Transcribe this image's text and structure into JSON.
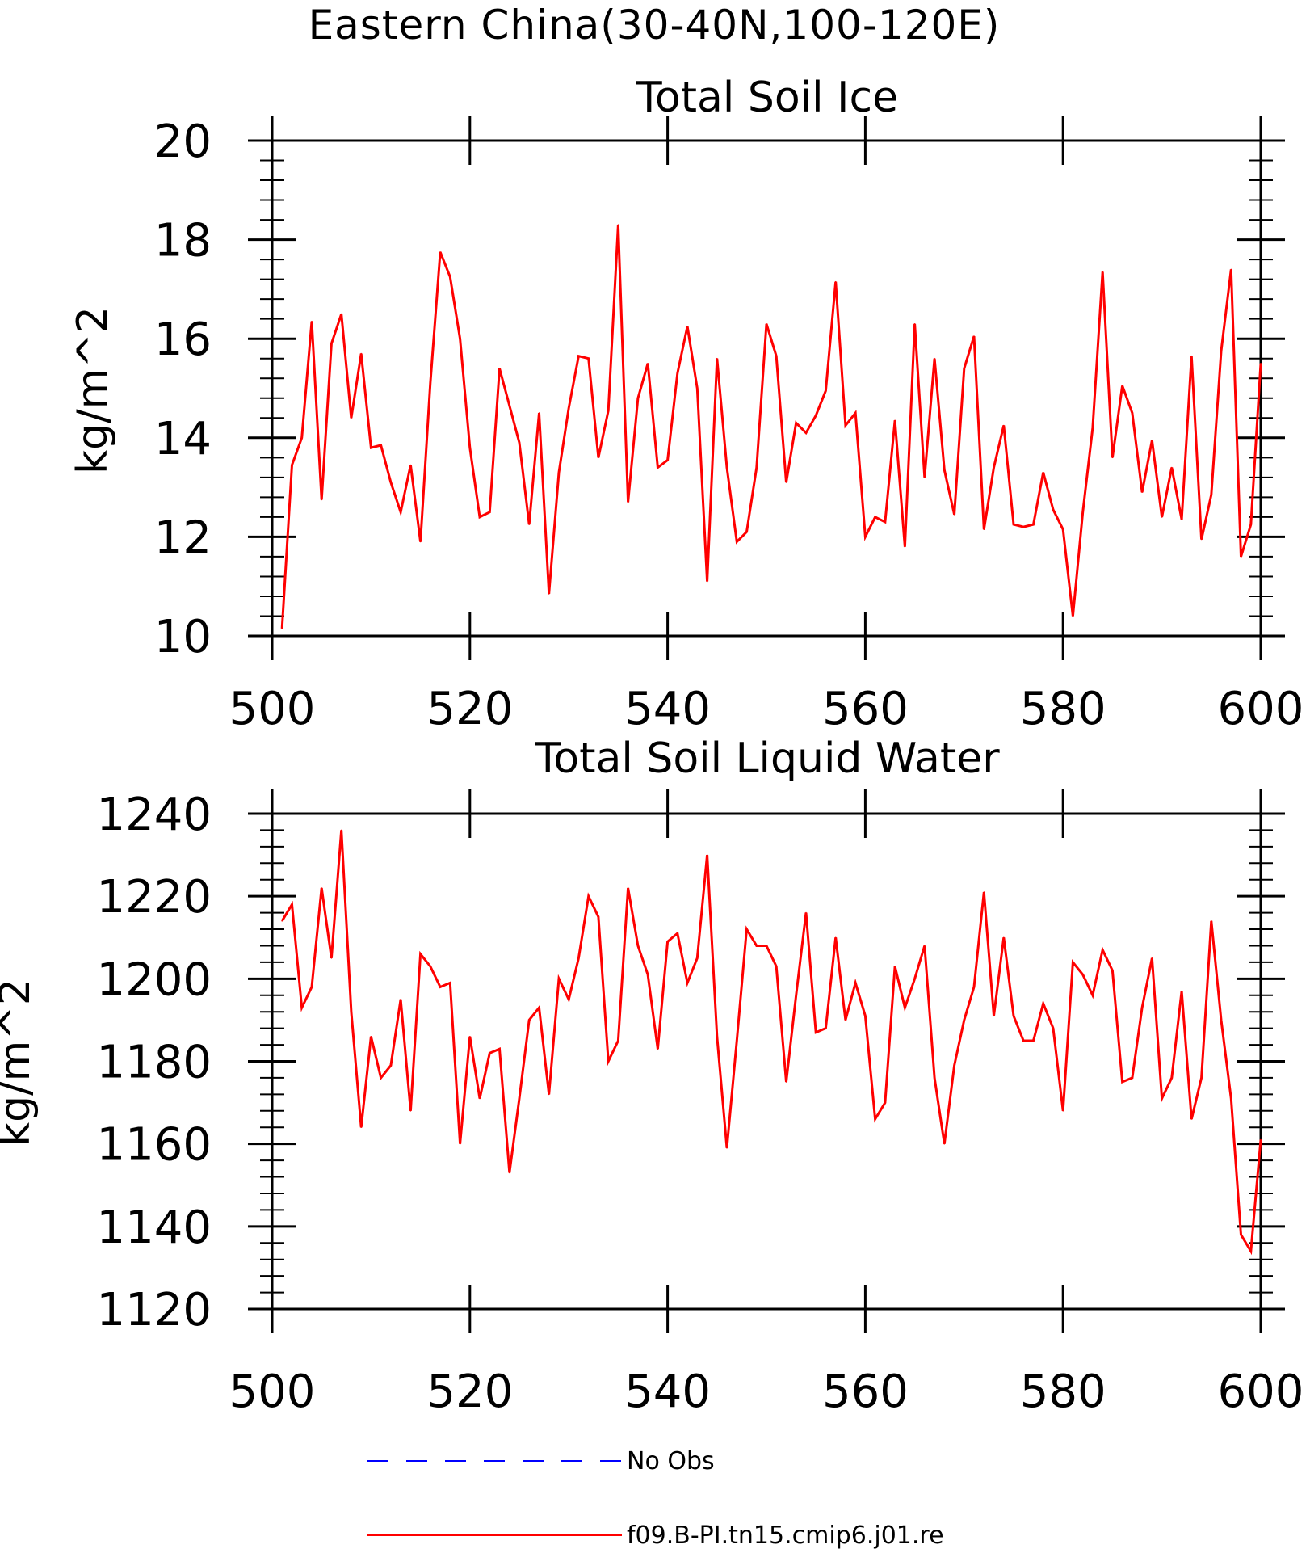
{
  "main_title": "Eastern China(30-40N,100-120E)",
  "legend": [
    {
      "label": "No Obs",
      "color": "#0000ff",
      "style": "dashed"
    },
    {
      "label": "f09.B-PI.tn15.cmip6.j01.re",
      "color": "#ff0000",
      "style": "solid"
    }
  ],
  "chart_data": [
    {
      "type": "line",
      "title": "Total Soil Ice",
      "xlabel": "",
      "ylabel": "kg/m^2",
      "xlim": [
        500,
        600
      ],
      "ylim": [
        10,
        20
      ],
      "xticks": [
        500,
        520,
        540,
        560,
        580,
        600
      ],
      "yticks": [
        10,
        12,
        14,
        16,
        18,
        20
      ],
      "grid": false,
      "x": [
        501,
        502,
        503,
        504,
        505,
        506,
        507,
        508,
        509,
        510,
        511,
        512,
        513,
        514,
        515,
        516,
        517,
        518,
        519,
        520,
        521,
        522,
        523,
        524,
        525,
        526,
        527,
        528,
        529,
        530,
        531,
        532,
        533,
        534,
        535,
        536,
        537,
        538,
        539,
        540,
        541,
        542,
        543,
        544,
        545,
        546,
        547,
        548,
        549,
        550,
        551,
        552,
        553,
        554,
        555,
        556,
        557,
        558,
        559,
        560,
        561,
        562,
        563,
        564,
        565,
        566,
        567,
        568,
        569,
        570,
        571,
        572,
        573,
        574,
        575,
        576,
        577,
        578,
        579,
        580,
        581,
        582,
        583,
        584,
        585,
        586,
        587,
        588,
        589,
        590,
        591,
        592,
        593,
        594,
        595,
        596,
        597,
        598,
        599,
        600
      ],
      "series": [
        {
          "name": "f09.B-PI.tn15.cmip6.j01.re",
          "color": "#ff0000",
          "values": [
            10.15,
            13.45,
            14.0,
            16.35,
            12.75,
            15.9,
            16.5,
            14.4,
            15.7,
            13.8,
            13.85,
            13.1,
            12.5,
            13.45,
            11.9,
            15.1,
            17.75,
            17.25,
            16.0,
            13.8,
            12.4,
            12.5,
            15.4,
            14.65,
            13.9,
            12.25,
            14.5,
            10.85,
            13.3,
            14.6,
            15.65,
            15.6,
            13.6,
            14.55,
            18.3,
            12.7,
            14.8,
            15.5,
            13.4,
            13.55,
            15.3,
            16.25,
            15.0,
            11.1,
            15.6,
            13.4,
            11.9,
            12.1,
            13.4,
            16.3,
            15.65,
            13.1,
            14.3,
            14.1,
            14.45,
            14.95,
            17.15,
            14.25,
            14.5,
            12.0,
            12.4,
            12.3,
            14.35,
            11.8,
            16.3,
            13.2,
            15.6,
            13.35,
            12.45,
            15.4,
            16.05,
            12.15,
            13.4,
            14.25,
            12.25,
            12.2,
            12.25,
            13.3,
            12.55,
            12.15,
            10.4,
            12.5,
            14.2,
            17.35,
            13.6,
            15.05,
            14.5,
            12.9,
            13.95,
            12.4,
            13.4,
            12.35,
            15.65,
            11.95,
            12.85,
            15.75,
            17.4,
            11.6,
            12.25,
            15.5
          ]
        }
      ]
    },
    {
      "type": "line",
      "title": "Total Soil Liquid Water",
      "xlabel": "",
      "ylabel": "kg/m^2",
      "xlim": [
        500,
        600
      ],
      "ylim": [
        1120,
        1240
      ],
      "xticks": [
        500,
        520,
        540,
        560,
        580,
        600
      ],
      "yticks": [
        1120,
        1140,
        1160,
        1180,
        1200,
        1220,
        1240
      ],
      "grid": false,
      "x": [
        501,
        502,
        503,
        504,
        505,
        506,
        507,
        508,
        509,
        510,
        511,
        512,
        513,
        514,
        515,
        516,
        517,
        518,
        519,
        520,
        521,
        522,
        523,
        524,
        525,
        526,
        527,
        528,
        529,
        530,
        531,
        532,
        533,
        534,
        535,
        536,
        537,
        538,
        539,
        540,
        541,
        542,
        543,
        544,
        545,
        546,
        547,
        548,
        549,
        550,
        551,
        552,
        553,
        554,
        555,
        556,
        557,
        558,
        559,
        560,
        561,
        562,
        563,
        564,
        565,
        566,
        567,
        568,
        569,
        570,
        571,
        572,
        573,
        574,
        575,
        576,
        577,
        578,
        579,
        580,
        581,
        582,
        583,
        584,
        585,
        586,
        587,
        588,
        589,
        590,
        591,
        592,
        593,
        594,
        595,
        596,
        597,
        598,
        599,
        600
      ],
      "series": [
        {
          "name": "f09.B-PI.tn15.cmip6.j01.re",
          "color": "#ff0000",
          "values": [
            1214,
            1218,
            1193,
            1198,
            1222,
            1205,
            1236,
            1192,
            1164,
            1186,
            1176,
            1179,
            1195,
            1168,
            1206,
            1203,
            1198,
            1199,
            1160,
            1186,
            1171,
            1182,
            1183,
            1153,
            1171,
            1190,
            1193,
            1172,
            1200,
            1195,
            1205,
            1220,
            1215,
            1180,
            1185,
            1222,
            1208,
            1201,
            1183,
            1209,
            1211,
            1199,
            1205,
            1230,
            1186,
            1159,
            1185,
            1212,
            1208,
            1208,
            1203,
            1175,
            1196,
            1216,
            1187,
            1188,
            1210,
            1190,
            1199,
            1191,
            1166,
            1170,
            1203,
            1193,
            1200,
            1208,
            1176,
            1160,
            1179,
            1190,
            1198,
            1221,
            1191,
            1210,
            1191,
            1185,
            1185,
            1194,
            1188,
            1168,
            1204,
            1201,
            1196,
            1207,
            1202,
            1175,
            1176,
            1193,
            1205,
            1171,
            1176,
            1197,
            1166,
            1176,
            1214,
            1190,
            1171,
            1138,
            1134,
            1161
          ]
        }
      ]
    }
  ]
}
